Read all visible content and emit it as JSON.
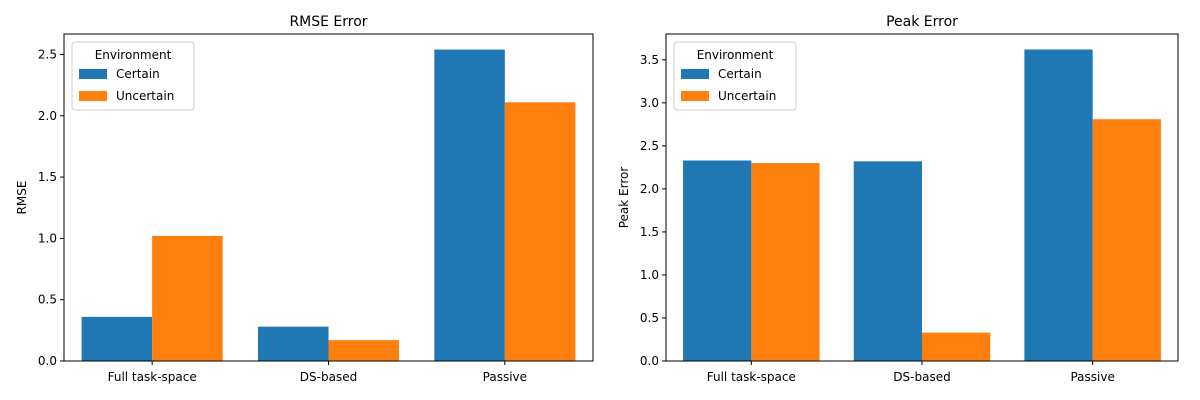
{
  "chart_data": [
    {
      "type": "bar",
      "title": "RMSE Error",
      "xlabel": "",
      "ylabel": "RMSE",
      "categories": [
        "Full task-space",
        "DS-based",
        "Passive"
      ],
      "series": [
        {
          "name": "Certain",
          "values": [
            0.36,
            0.28,
            2.54
          ]
        },
        {
          "name": "Uncertain",
          "values": [
            1.02,
            0.17,
            2.11
          ]
        }
      ],
      "yticks": [
        0.0,
        0.5,
        1.0,
        1.5,
        2.0,
        2.5
      ],
      "ytick_labels": [
        "0.0",
        "0.5",
        "1.0",
        "1.5",
        "2.0",
        "2.5"
      ],
      "ylim": [
        0,
        2.667
      ],
      "legend": {
        "title": "Environment",
        "placement": "upper-left"
      },
      "grid": false
    },
    {
      "type": "bar",
      "title": "Peak Error",
      "xlabel": "",
      "ylabel": "Peak Error",
      "categories": [
        "Full task-space",
        "DS-based",
        "Passive"
      ],
      "series": [
        {
          "name": "Certain",
          "values": [
            2.33,
            2.32,
            3.62
          ]
        },
        {
          "name": "Uncertain",
          "values": [
            2.3,
            0.33,
            2.81
          ]
        }
      ],
      "yticks": [
        0.0,
        0.5,
        1.0,
        1.5,
        2.0,
        2.5,
        3.0,
        3.5
      ],
      "ytick_labels": [
        "0.0",
        "0.5",
        "1.0",
        "1.5",
        "2.0",
        "2.5",
        "3.0",
        "3.5"
      ],
      "ylim": [
        0,
        3.8
      ],
      "legend": {
        "title": "Environment",
        "placement": "upper-left"
      },
      "grid": false
    }
  ],
  "colors": {
    "Certain": "#1f77b4",
    "Uncertain": "#ff7f0e"
  }
}
